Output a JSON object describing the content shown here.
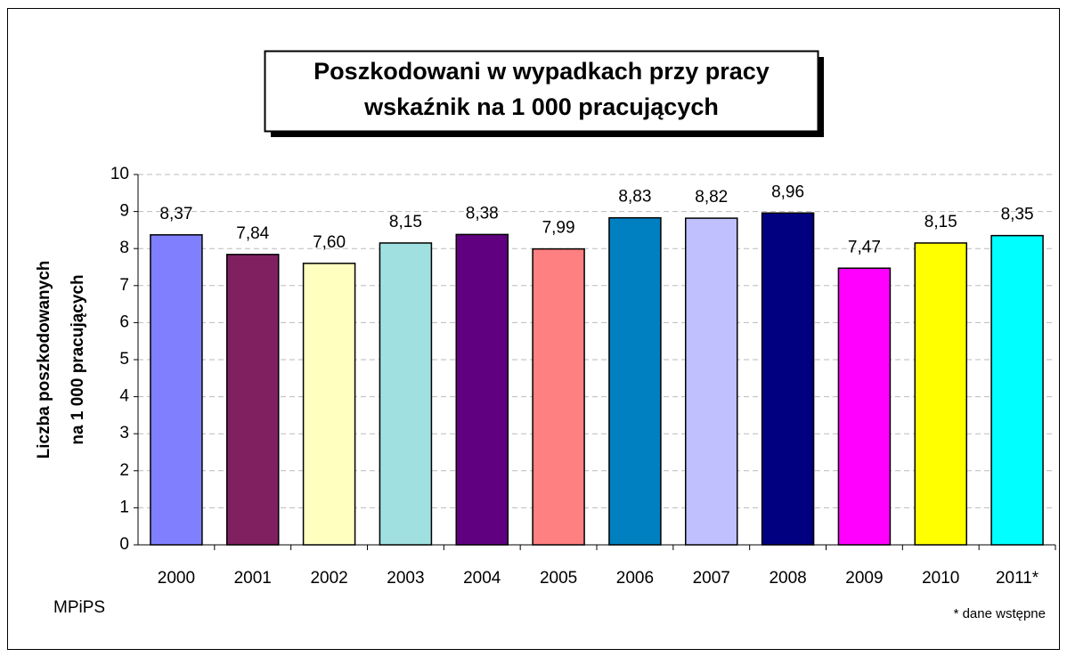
{
  "chart_data": {
    "type": "bar",
    "title": [
      "Poszkodowani w wypadkach przy pracy",
      "wskaźnik na 1 000 pracujących"
    ],
    "ylabel": [
      "Liczba poszkodowanych",
      "na 1 000 pracujących"
    ],
    "categories": [
      "2000",
      "2001",
      "2002",
      "2003",
      "2004",
      "2005",
      "2006",
      "2007",
      "2008",
      "2009",
      "2010",
      "2011*"
    ],
    "values": [
      8.37,
      7.84,
      7.6,
      8.15,
      8.38,
      7.99,
      8.83,
      8.82,
      8.96,
      7.47,
      8.15,
      8.35
    ],
    "value_labels": [
      "8,37",
      "7,84",
      "7,60",
      "8,15",
      "8,38",
      "7,99",
      "8,83",
      "8,82",
      "8,96",
      "7,47",
      "8,15",
      "8,35"
    ],
    "colors": [
      "#8080ff",
      "#802060",
      "#ffffc0",
      "#a0e0e0",
      "#600080",
      "#ff8080",
      "#0080c0",
      "#c0c0ff",
      "#000080",
      "#ff00ff",
      "#ffff00",
      "#00ffff"
    ],
    "ylim": [
      0,
      10
    ],
    "yticks": [
      0,
      1,
      2,
      3,
      4,
      5,
      6,
      7,
      8,
      9,
      10
    ],
    "grid": true,
    "annotations": [
      "MPiPS",
      "* dane wstępne"
    ]
  }
}
